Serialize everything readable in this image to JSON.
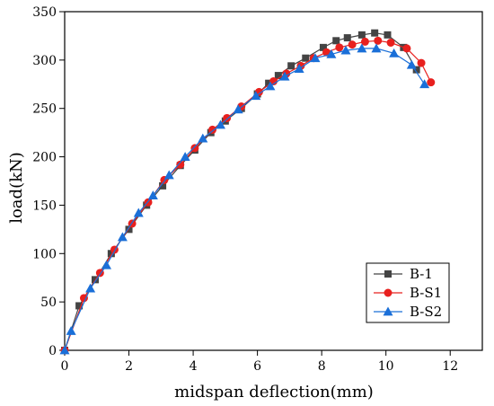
{
  "chart_data": {
    "type": "line",
    "xlabel": "midspan deflection(mm)",
    "ylabel": "load(kN)",
    "xlim": [
      0,
      13
    ],
    "ylim": [
      0,
      350
    ],
    "xticks": [
      "0",
      "2",
      "4",
      "6",
      "8",
      "10",
      "12"
    ],
    "yticks": [
      "0",
      "50",
      "100",
      "150",
      "200",
      "250",
      "300",
      "350"
    ],
    "grid": false,
    "legend_position": "bottom-right",
    "series": [
      {
        "name": "B-1",
        "color": "#444444",
        "marker": "square",
        "points": [
          [
            0,
            0
          ],
          [
            0.45,
            46
          ],
          [
            0.95,
            73
          ],
          [
            1.45,
            100
          ],
          [
            2.0,
            125
          ],
          [
            2.55,
            150
          ],
          [
            3.05,
            170
          ],
          [
            3.6,
            191
          ],
          [
            4.05,
            207
          ],
          [
            4.55,
            225
          ],
          [
            5.0,
            237
          ],
          [
            5.5,
            250
          ],
          [
            6.0,
            265
          ],
          [
            6.35,
            276
          ],
          [
            6.65,
            284
          ],
          [
            7.05,
            294
          ],
          [
            7.5,
            302
          ],
          [
            8.05,
            313
          ],
          [
            8.45,
            320
          ],
          [
            8.8,
            323
          ],
          [
            9.25,
            326
          ],
          [
            9.65,
            328
          ],
          [
            10.05,
            326
          ],
          [
            10.55,
            313
          ],
          [
            10.95,
            290
          ]
        ]
      },
      {
        "name": "B-S1",
        "color": "#e8201e",
        "marker": "circle",
        "points": [
          [
            0,
            0
          ],
          [
            0.6,
            54
          ],
          [
            1.1,
            80
          ],
          [
            1.55,
            104
          ],
          [
            2.1,
            131
          ],
          [
            2.6,
            153
          ],
          [
            3.1,
            176
          ],
          [
            3.6,
            192
          ],
          [
            4.05,
            209
          ],
          [
            4.6,
            228
          ],
          [
            5.05,
            240
          ],
          [
            5.5,
            252
          ],
          [
            6.05,
            267
          ],
          [
            6.5,
            278
          ],
          [
            6.9,
            286
          ],
          [
            7.35,
            294
          ],
          [
            7.75,
            302
          ],
          [
            8.15,
            308
          ],
          [
            8.55,
            313
          ],
          [
            8.95,
            316
          ],
          [
            9.35,
            319
          ],
          [
            9.75,
            320
          ],
          [
            10.15,
            318
          ],
          [
            10.65,
            312
          ],
          [
            11.1,
            297
          ],
          [
            11.4,
            277
          ]
        ]
      },
      {
        "name": "B-S2",
        "color": "#1a6fd8",
        "marker": "triangle",
        "points": [
          [
            0,
            0
          ],
          [
            0.2,
            20
          ],
          [
            0.8,
            64
          ],
          [
            1.3,
            88
          ],
          [
            1.8,
            117
          ],
          [
            2.3,
            142
          ],
          [
            2.75,
            160
          ],
          [
            3.25,
            181
          ],
          [
            3.75,
            200
          ],
          [
            4.3,
            219
          ],
          [
            4.85,
            233
          ],
          [
            5.4,
            249
          ],
          [
            5.95,
            263
          ],
          [
            6.4,
            273
          ],
          [
            6.85,
            283
          ],
          [
            7.3,
            291
          ],
          [
            7.8,
            302
          ],
          [
            8.3,
            306
          ],
          [
            8.75,
            310
          ],
          [
            9.25,
            312
          ],
          [
            9.7,
            312
          ],
          [
            10.25,
            307
          ],
          [
            10.8,
            295
          ],
          [
            11.2,
            275
          ]
        ]
      }
    ]
  }
}
